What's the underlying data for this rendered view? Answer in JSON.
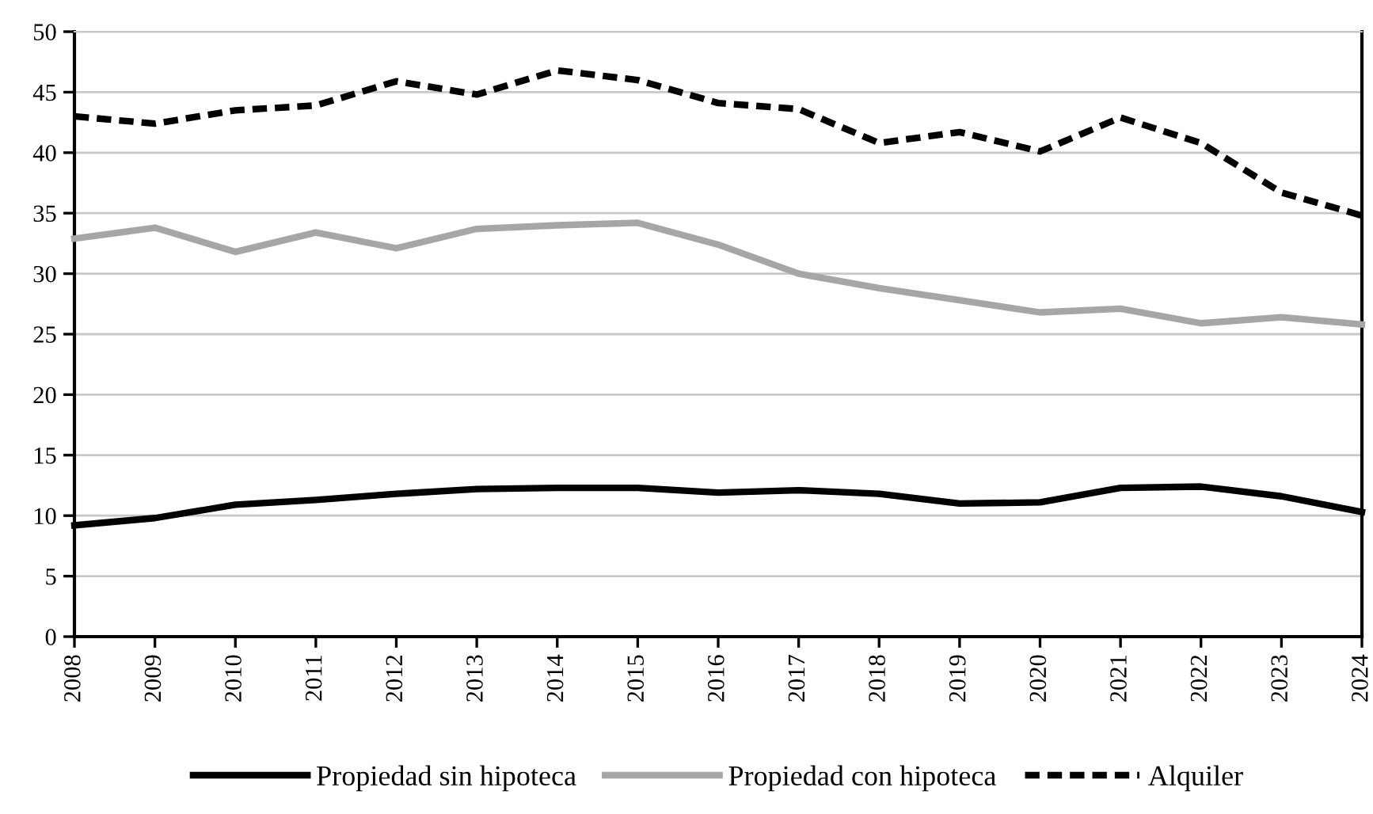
{
  "chart_data": {
    "type": "line",
    "categories": [
      "2008",
      "2009",
      "2010",
      "2011",
      "2012",
      "2013",
      "2014",
      "2015",
      "2016",
      "2017",
      "2018",
      "2019",
      "2020",
      "2021",
      "2022",
      "2023",
      "2024"
    ],
    "series": [
      {
        "name": "Propiedad sin hipoteca",
        "color": "#000000",
        "line_style": "solid",
        "values": [
          9.2,
          9.8,
          10.9,
          11.3,
          11.8,
          12.2,
          12.3,
          12.3,
          11.9,
          12.1,
          11.8,
          11.0,
          11.1,
          12.3,
          12.4,
          11.6,
          10.3
        ]
      },
      {
        "name": "Propiedad con hipoteca",
        "color": "#a6a6a6",
        "line_style": "solid",
        "values": [
          32.9,
          33.8,
          31.8,
          33.4,
          32.1,
          33.7,
          34.0,
          34.2,
          32.4,
          30.0,
          28.8,
          27.8,
          26.8,
          27.1,
          25.9,
          26.4,
          25.8
        ]
      },
      {
        "name": "Alquiler",
        "color": "#000000",
        "line_style": "dashed",
        "values": [
          43.0,
          42.4,
          43.5,
          43.9,
          45.9,
          44.8,
          46.8,
          46.0,
          44.1,
          43.6,
          40.8,
          41.7,
          40.1,
          42.9,
          40.8,
          36.7,
          34.8
        ]
      }
    ],
    "ylim": [
      0,
      50
    ],
    "yticks": [
      0,
      5,
      10,
      15,
      20,
      25,
      30,
      35,
      40,
      45,
      50
    ],
    "grid": "y",
    "legend": "bottom",
    "marker": "none"
  }
}
